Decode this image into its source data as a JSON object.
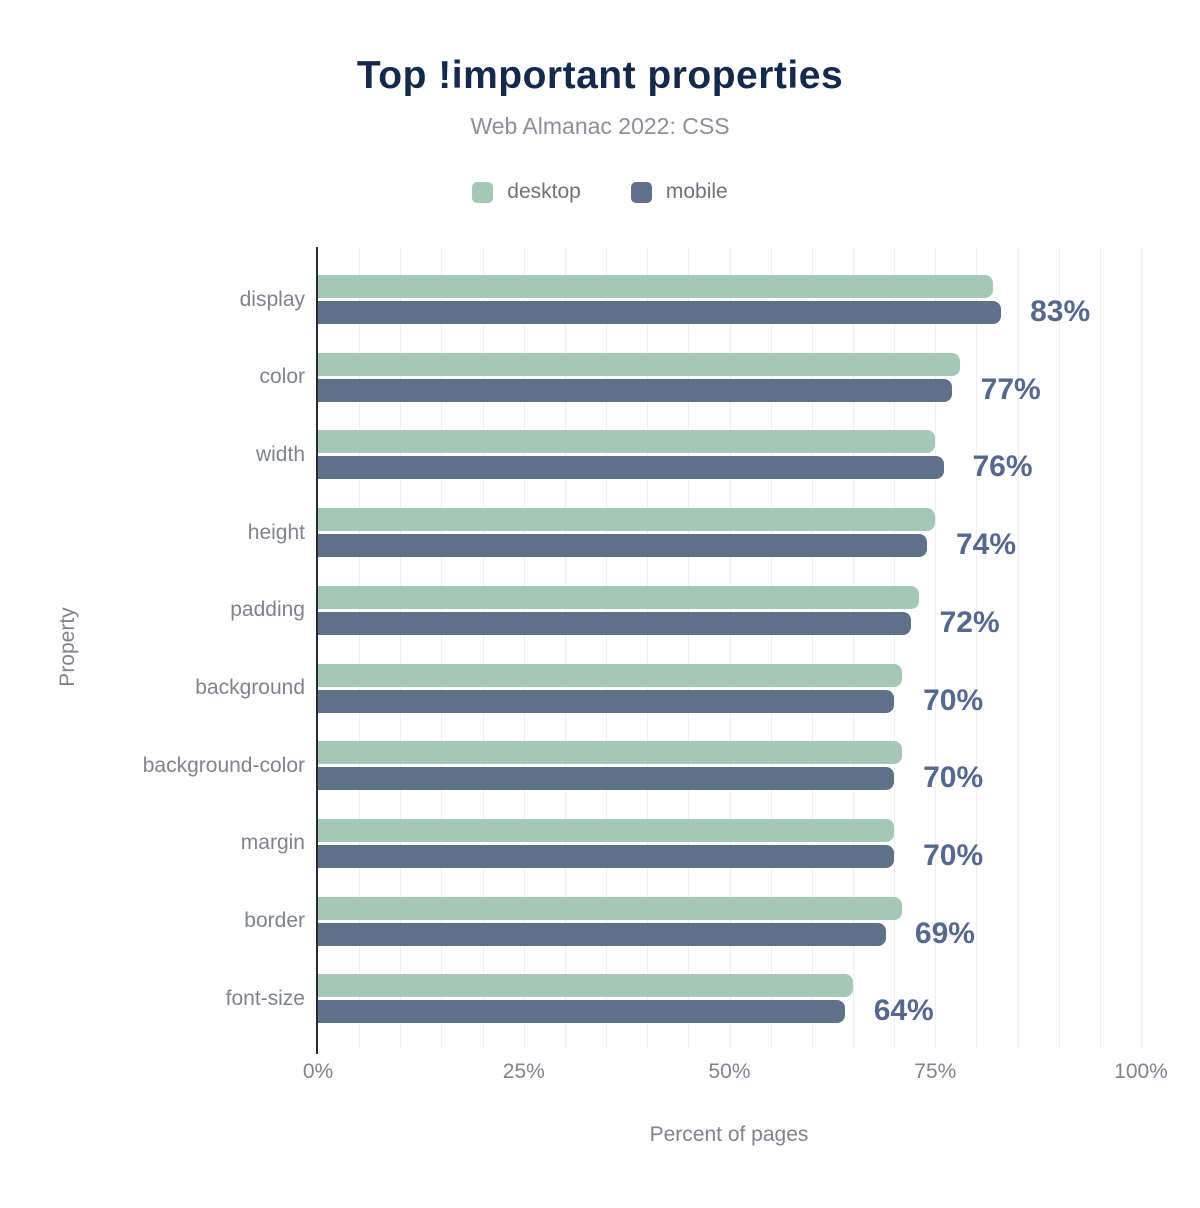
{
  "chart_data": {
    "type": "bar",
    "orientation": "horizontal",
    "title": "Top !important properties",
    "subtitle": "Web Almanac 2022: CSS",
    "xlabel": "Percent of pages",
    "ylabel": "Property",
    "xlim": [
      0,
      100
    ],
    "x_tick_labels": [
      "0%",
      "25%",
      "50%",
      "75%",
      "100%"
    ],
    "x_tick_values": [
      0,
      25,
      50,
      75,
      100
    ],
    "grid": {
      "show": true,
      "interval_pct": 5
    },
    "legend_position": "top",
    "categories": [
      "display",
      "color",
      "width",
      "height",
      "padding",
      "background",
      "background-color",
      "margin",
      "border",
      "font-size"
    ],
    "series": [
      {
        "name": "desktop",
        "color": "#a4c8b5",
        "values": [
          82,
          78,
          75,
          75,
          73,
          71,
          71,
          70,
          71,
          65
        ]
      },
      {
        "name": "mobile",
        "color": "#5f7189",
        "values": [
          83,
          77,
          76,
          74,
          72,
          70,
          70,
          70,
          69,
          64
        ]
      }
    ],
    "value_labels": [
      "83%",
      "77%",
      "76%",
      "74%",
      "72%",
      "70%",
      "70%",
      "70%",
      "69%",
      "64%"
    ],
    "value_labels_follow_series": "mobile"
  },
  "colors": {
    "title": "#142a4d",
    "subtitle": "#8a909b",
    "axis_text": "#7d848f",
    "legend_text": "#6d737e",
    "value_label": "#55698e",
    "gridline": "#eef0f0",
    "axis_line": "#262b33",
    "desktop_bar": "#a4c8b5",
    "mobile_bar": "#5f7189",
    "background": "#ffffff"
  }
}
